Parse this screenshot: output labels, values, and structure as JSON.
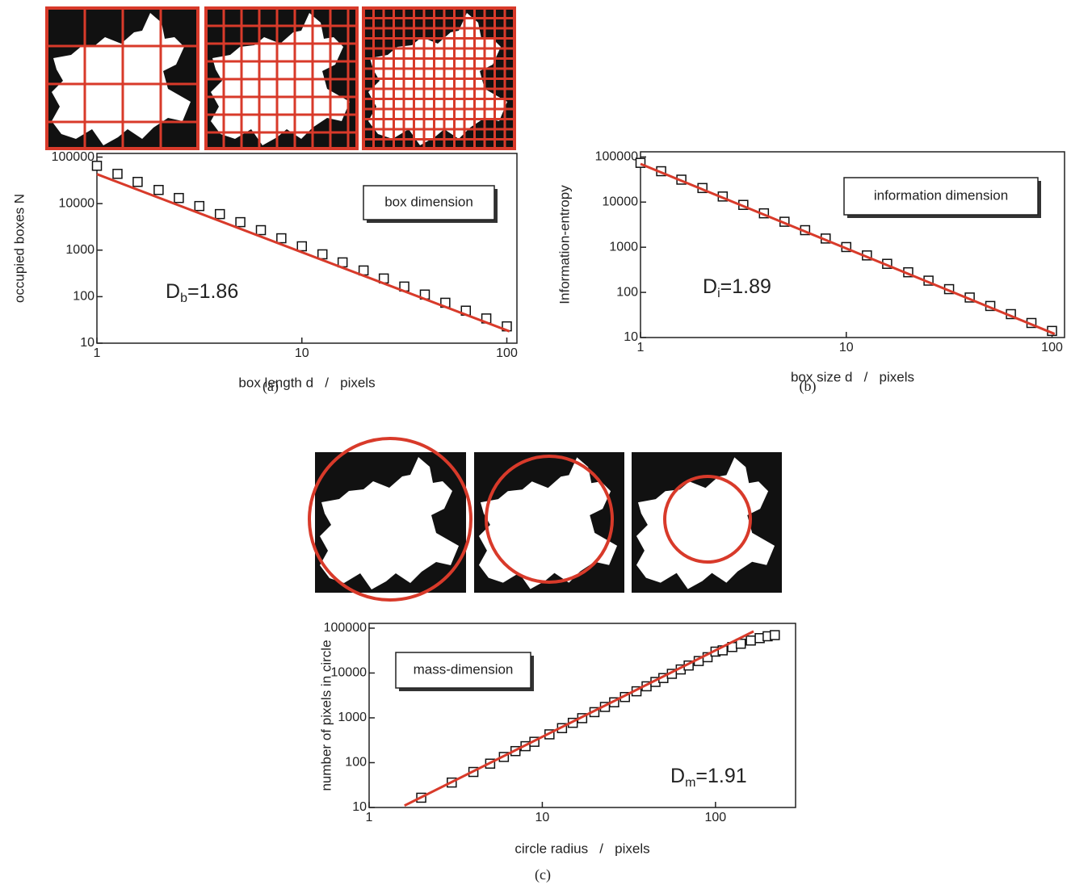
{
  "chart_data": [
    {
      "type": "scatter",
      "log_x": true,
      "log_y": true,
      "x_label": "box length d   /   pixels",
      "y_label": "occupied boxes N",
      "caption": "(a)",
      "annotation": "box dimension",
      "fit_label": [
        "D",
        "b",
        "=1.86"
      ],
      "xlim": [
        1,
        112
      ],
      "ylim": [
        10,
        120000
      ],
      "xticks": [
        1,
        10,
        100
      ],
      "yticks": [
        10,
        100,
        1000,
        10000,
        100000
      ],
      "series": [
        {
          "style": "markers",
          "color": "#111111",
          "x": [
            1,
            1.26,
            1.58,
            2,
            2.51,
            3.16,
            3.98,
            5.01,
            6.31,
            7.94,
            10,
            12.6,
            15.8,
            20,
            25.1,
            31.6,
            39.8,
            50.1,
            63.1,
            79.4,
            100
          ],
          "values": [
            65000,
            43650,
            29310,
            19680,
            13210,
            8870,
            5960,
            4000,
            2690,
            1800,
            1210,
            813,
            546,
            366,
            246,
            165,
            111,
            74,
            50,
            34,
            23
          ]
        },
        {
          "style": "line",
          "color": "#d83a2a",
          "x": [
            1,
            103
          ],
          "values": [
            43000,
            18
          ]
        }
      ]
    },
    {
      "type": "scatter",
      "log_x": true,
      "log_y": true,
      "x_label": "box size d   /   pixels",
      "y_label": "Information-entropy",
      "caption": "(b)",
      "annotation": "information dimension",
      "fit_label": [
        "D",
        "i",
        "=1.89"
      ],
      "xlim": [
        1,
        115
      ],
      "ylim": [
        10,
        130000
      ],
      "xticks": [
        1,
        10,
        100
      ],
      "yticks": [
        10,
        100,
        1000,
        10000,
        100000
      ],
      "series": [
        {
          "style": "markers",
          "color": "#111111",
          "x": [
            1,
            1.26,
            1.58,
            2,
            2.51,
            3.16,
            3.98,
            5.01,
            6.31,
            7.94,
            10,
            12.6,
            15.8,
            20,
            25.1,
            31.6,
            39.8,
            50.1,
            63.1,
            79.4,
            100
          ],
          "values": [
            74000,
            48300,
            31400,
            20500,
            13300,
            8670,
            5640,
            3670,
            2390,
            1560,
            1010,
            659,
            429,
            279,
            182,
            118,
            77,
            50,
            33,
            21,
            14
          ]
        },
        {
          "style": "line",
          "color": "#d83a2a",
          "x": [
            1,
            103
          ],
          "values": [
            70000,
            12
          ]
        }
      ]
    },
    {
      "type": "scatter",
      "log_x": true,
      "log_y": true,
      "x_label": "circle radius   /   pixels",
      "y_label": "number of pixels in circle",
      "caption": "(c)",
      "annotation": "mass-dimension",
      "fit_label": [
        "D",
        "m",
        "=1.91"
      ],
      "xlim": [
        1,
        290
      ],
      "ylim": [
        10,
        128000
      ],
      "xticks": [
        1,
        10,
        100
      ],
      "yticks": [
        10,
        100,
        1000,
        10000,
        100000
      ],
      "series": [
        {
          "style": "markers",
          "color": "#111111",
          "x": [
            2,
            3,
            4,
            5,
            6,
            7,
            8,
            9,
            11,
            13,
            15,
            17,
            20,
            23,
            26,
            30,
            35,
            40,
            45,
            50,
            56,
            63,
            70,
            80,
            90,
            100,
            110,
            125,
            140,
            160,
            180,
            200,
            220
          ],
          "values": [
            16.5,
            36,
            62,
            95,
            134,
            181,
            233,
            292,
            428,
            589,
            774,
            983,
            1340,
            1750,
            2220,
            2910,
            3910,
            5050,
            6320,
            7720,
            9590,
            12000,
            14700,
            18500,
            22500,
            30000,
            32000,
            38000,
            45000,
            53000,
            60000,
            66000,
            70000
          ]
        },
        {
          "style": "line",
          "color": "#d83a2a",
          "x": [
            1.6,
            166
          ],
          "values": [
            11,
            85000
          ]
        }
      ]
    }
  ]
}
